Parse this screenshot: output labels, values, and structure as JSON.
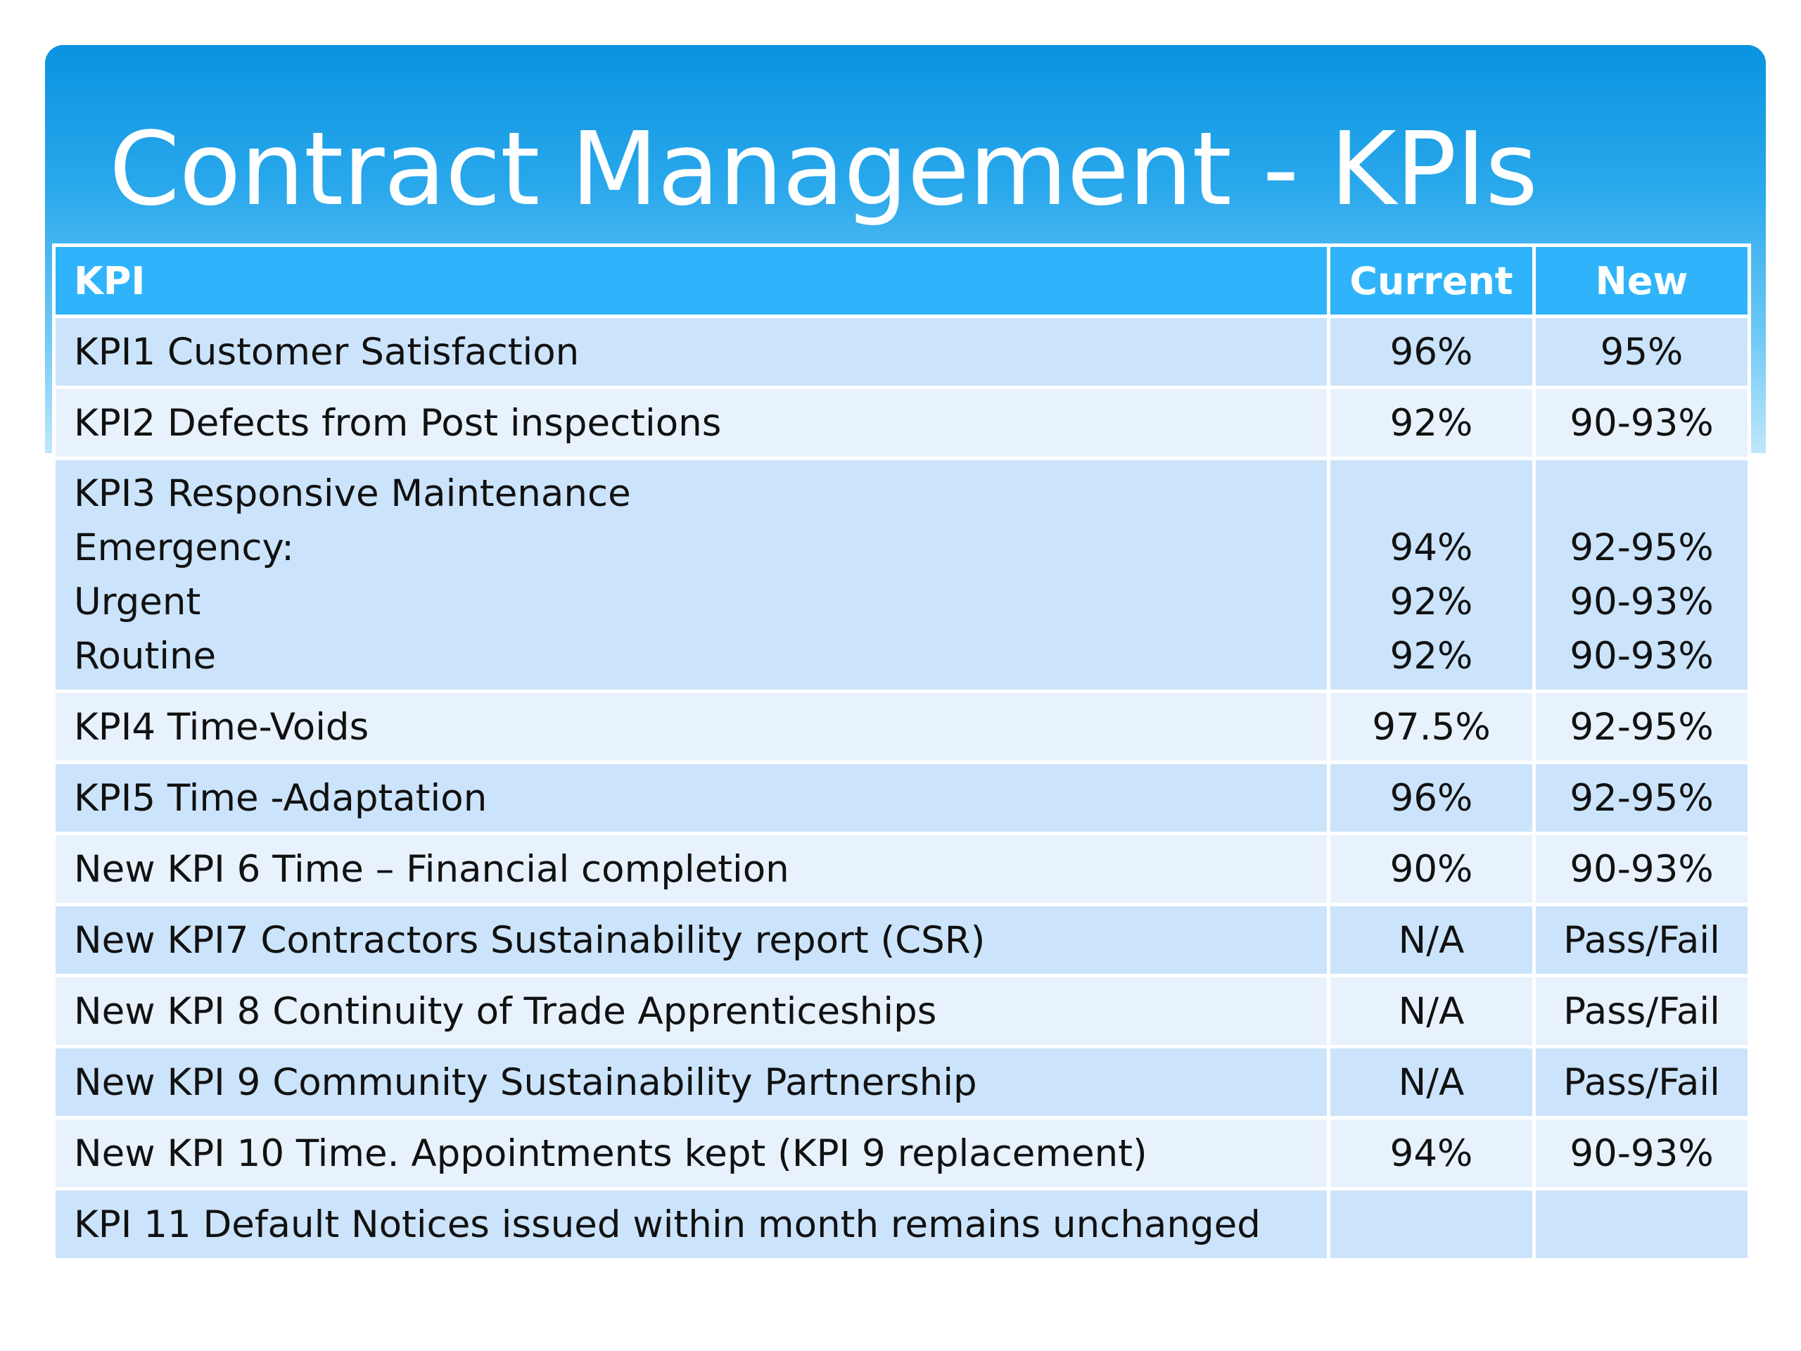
{
  "title": "Contract Management - KPIs",
  "colors": {
    "banner_top": "#0a93df",
    "banner_bottom": "#bfe7fb",
    "header_row": "#2fb4fb",
    "row_dark": "#cce4fb",
    "row_light": "#e8f2fd"
  },
  "table": {
    "headers": {
      "kpi": "KPI",
      "current": "Current",
      "new": "New"
    },
    "rows": [
      {
        "kpi": "KPI1 Customer Satisfaction",
        "current": "96%",
        "new": "95%"
      },
      {
        "kpi": "KPI2 Defects from Post inspections",
        "current": "92%",
        "new": "90-93%"
      },
      {
        "kpi": "KPI3 Responsive Maintenance",
        "sub": [
          {
            "label": "Emergency:",
            "current": "94%",
            "new": "92-95%"
          },
          {
            "label": "Urgent",
            "current": "92%",
            "new": "90-93%"
          },
          {
            "label": "Routine",
            "current": "92%",
            "new": "90-93%"
          }
        ]
      },
      {
        "kpi": "KPI4 Time-Voids",
        "current": "97.5%",
        "new": "92-95%"
      },
      {
        "kpi": "KPI5 Time -Adaptation",
        "current": "96%",
        "new": "92-95%"
      },
      {
        "kpi": "New KPI 6 Time – Financial completion",
        "current": "90%",
        "new": "90-93%"
      },
      {
        "kpi": "New KPI7 Contractors Sustainability report (CSR)",
        "current": "N/A",
        "new": "Pass/Fail"
      },
      {
        "kpi": "New KPI 8 Continuity of Trade Apprenticeships",
        "current": "N/A",
        "new": "Pass/Fail"
      },
      {
        "kpi": "New KPI 9 Community Sustainability Partnership",
        "current": "N/A",
        "new": "Pass/Fail"
      },
      {
        "kpi": "New KPI 10 Time.  Appointments kept (KPI 9 replacement)",
        "current": "94%",
        "new": "90-93%"
      },
      {
        "kpi": "KPI 11 Default Notices issued within month remains unchanged",
        "current": "",
        "new": ""
      }
    ]
  }
}
